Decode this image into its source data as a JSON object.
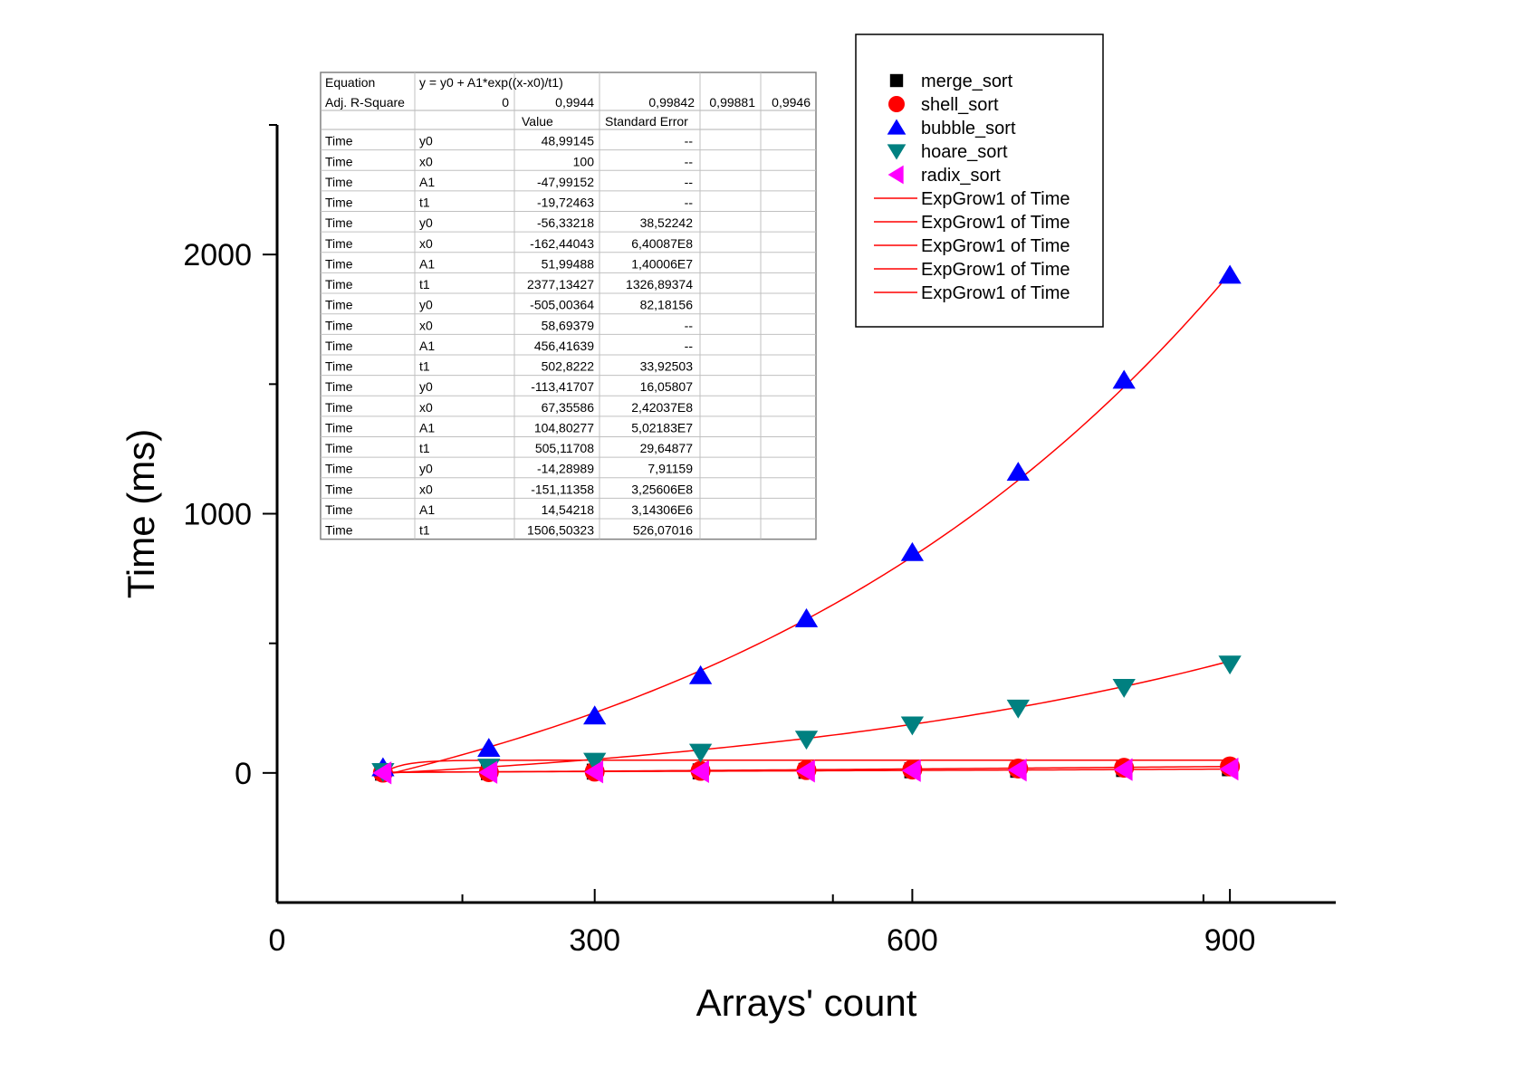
{
  "chart_data": {
    "type": "scatter",
    "xlabel": "Arrays' count",
    "ylabel": "Time (ms)",
    "xlim": [
      0,
      1000
    ],
    "ylim": [
      -500,
      2500
    ],
    "x_ticks": [
      0,
      300,
      600,
      900
    ],
    "y_ticks": [
      0,
      1000,
      2000
    ],
    "x": [
      100,
      200,
      300,
      400,
      500,
      600,
      700,
      800,
      900
    ],
    "series": [
      {
        "name": "merge_sort",
        "marker": "square",
        "color": "#000000",
        "values": [
          1,
          3,
          5,
          6,
          8,
          10,
          12,
          15,
          18
        ]
      },
      {
        "name": "shell_sort",
        "marker": "circle",
        "color": "#ff0000",
        "values": [
          1,
          3,
          5,
          8,
          11,
          13,
          17,
          20,
          25
        ]
      },
      {
        "name": "bubble_sort",
        "marker": "triangle-up",
        "color": "#0000ff",
        "values": [
          20,
          95,
          220,
          375,
          595,
          850,
          1160,
          1515,
          1920
        ]
      },
      {
        "name": "hoare_sort",
        "marker": "triangle-down",
        "color": "#008080",
        "values": [
          5,
          22,
          45,
          80,
          130,
          185,
          250,
          330,
          420
        ]
      },
      {
        "name": "radix_sort",
        "marker": "triangle-left",
        "color": "#ff00ff",
        "values": [
          0,
          2,
          4,
          5,
          7,
          9,
          11,
          13,
          15
        ]
      }
    ],
    "fits": [
      {
        "name": "ExpGrow1 of Time",
        "color": "#ff0000",
        "y0": 48.99145,
        "x0": 100,
        "A1": -47.99152,
        "t1": -19.72463
      },
      {
        "name": "ExpGrow1 of Time",
        "color": "#ff0000",
        "y0": -56.33218,
        "x0": -162.44043,
        "A1": 51.99488,
        "t1": 2377.13427
      },
      {
        "name": "ExpGrow1 of Time",
        "color": "#ff0000",
        "y0": -505.00364,
        "x0": 58.69379,
        "A1": 456.41639,
        "t1": 502.8222
      },
      {
        "name": "ExpGrow1 of Time",
        "color": "#ff0000",
        "y0": -113.41707,
        "x0": 67.35586,
        "A1": 104.80277,
        "t1": 505.11708
      },
      {
        "name": "ExpGrow1 of Time",
        "color": "#ff0000",
        "y0": -14.28989,
        "x0": -151.11358,
        "A1": 14.54218,
        "t1": 1506.50323
      }
    ],
    "legend_position": "top-right",
    "grid": false
  },
  "fit_table": {
    "equation_label": "Equation",
    "equation": "y = y0 + A1*exp((x-x0)/t1)",
    "adj_label": "Adj. R-Square",
    "adj_values": [
      "0",
      "0,9944",
      "0,99842",
      "0,99881",
      "0,9946"
    ],
    "header_value": "Value",
    "header_error": "Standard Error",
    "rows": [
      [
        "Time",
        "y0",
        "48,99145",
        "--"
      ],
      [
        "Time",
        "x0",
        "100",
        "--"
      ],
      [
        "Time",
        "A1",
        "-47,99152",
        "--"
      ],
      [
        "Time",
        "t1",
        "-19,72463",
        "--"
      ],
      [
        "Time",
        "y0",
        "-56,33218",
        "38,52242"
      ],
      [
        "Time",
        "x0",
        "-162,44043",
        "6,40087E8"
      ],
      [
        "Time",
        "A1",
        "51,99488",
        "1,40006E7"
      ],
      [
        "Time",
        "t1",
        "2377,13427",
        "1326,89374"
      ],
      [
        "Time",
        "y0",
        "-505,00364",
        "82,18156"
      ],
      [
        "Time",
        "x0",
        "58,69379",
        "--"
      ],
      [
        "Time",
        "A1",
        "456,41639",
        "--"
      ],
      [
        "Time",
        "t1",
        "502,8222",
        "33,92503"
      ],
      [
        "Time",
        "y0",
        "-113,41707",
        "16,05807"
      ],
      [
        "Time",
        "x0",
        "67,35586",
        "2,42037E8"
      ],
      [
        "Time",
        "A1",
        "104,80277",
        "5,02183E7"
      ],
      [
        "Time",
        "t1",
        "505,11708",
        "29,64877"
      ],
      [
        "Time",
        "y0",
        "-14,28989",
        "7,91159"
      ],
      [
        "Time",
        "x0",
        "-151,11358",
        "3,25606E8"
      ],
      [
        "Time",
        "A1",
        "14,54218",
        "3,14306E6"
      ],
      [
        "Time",
        "t1",
        "1506,50323",
        "526,07016"
      ]
    ]
  }
}
